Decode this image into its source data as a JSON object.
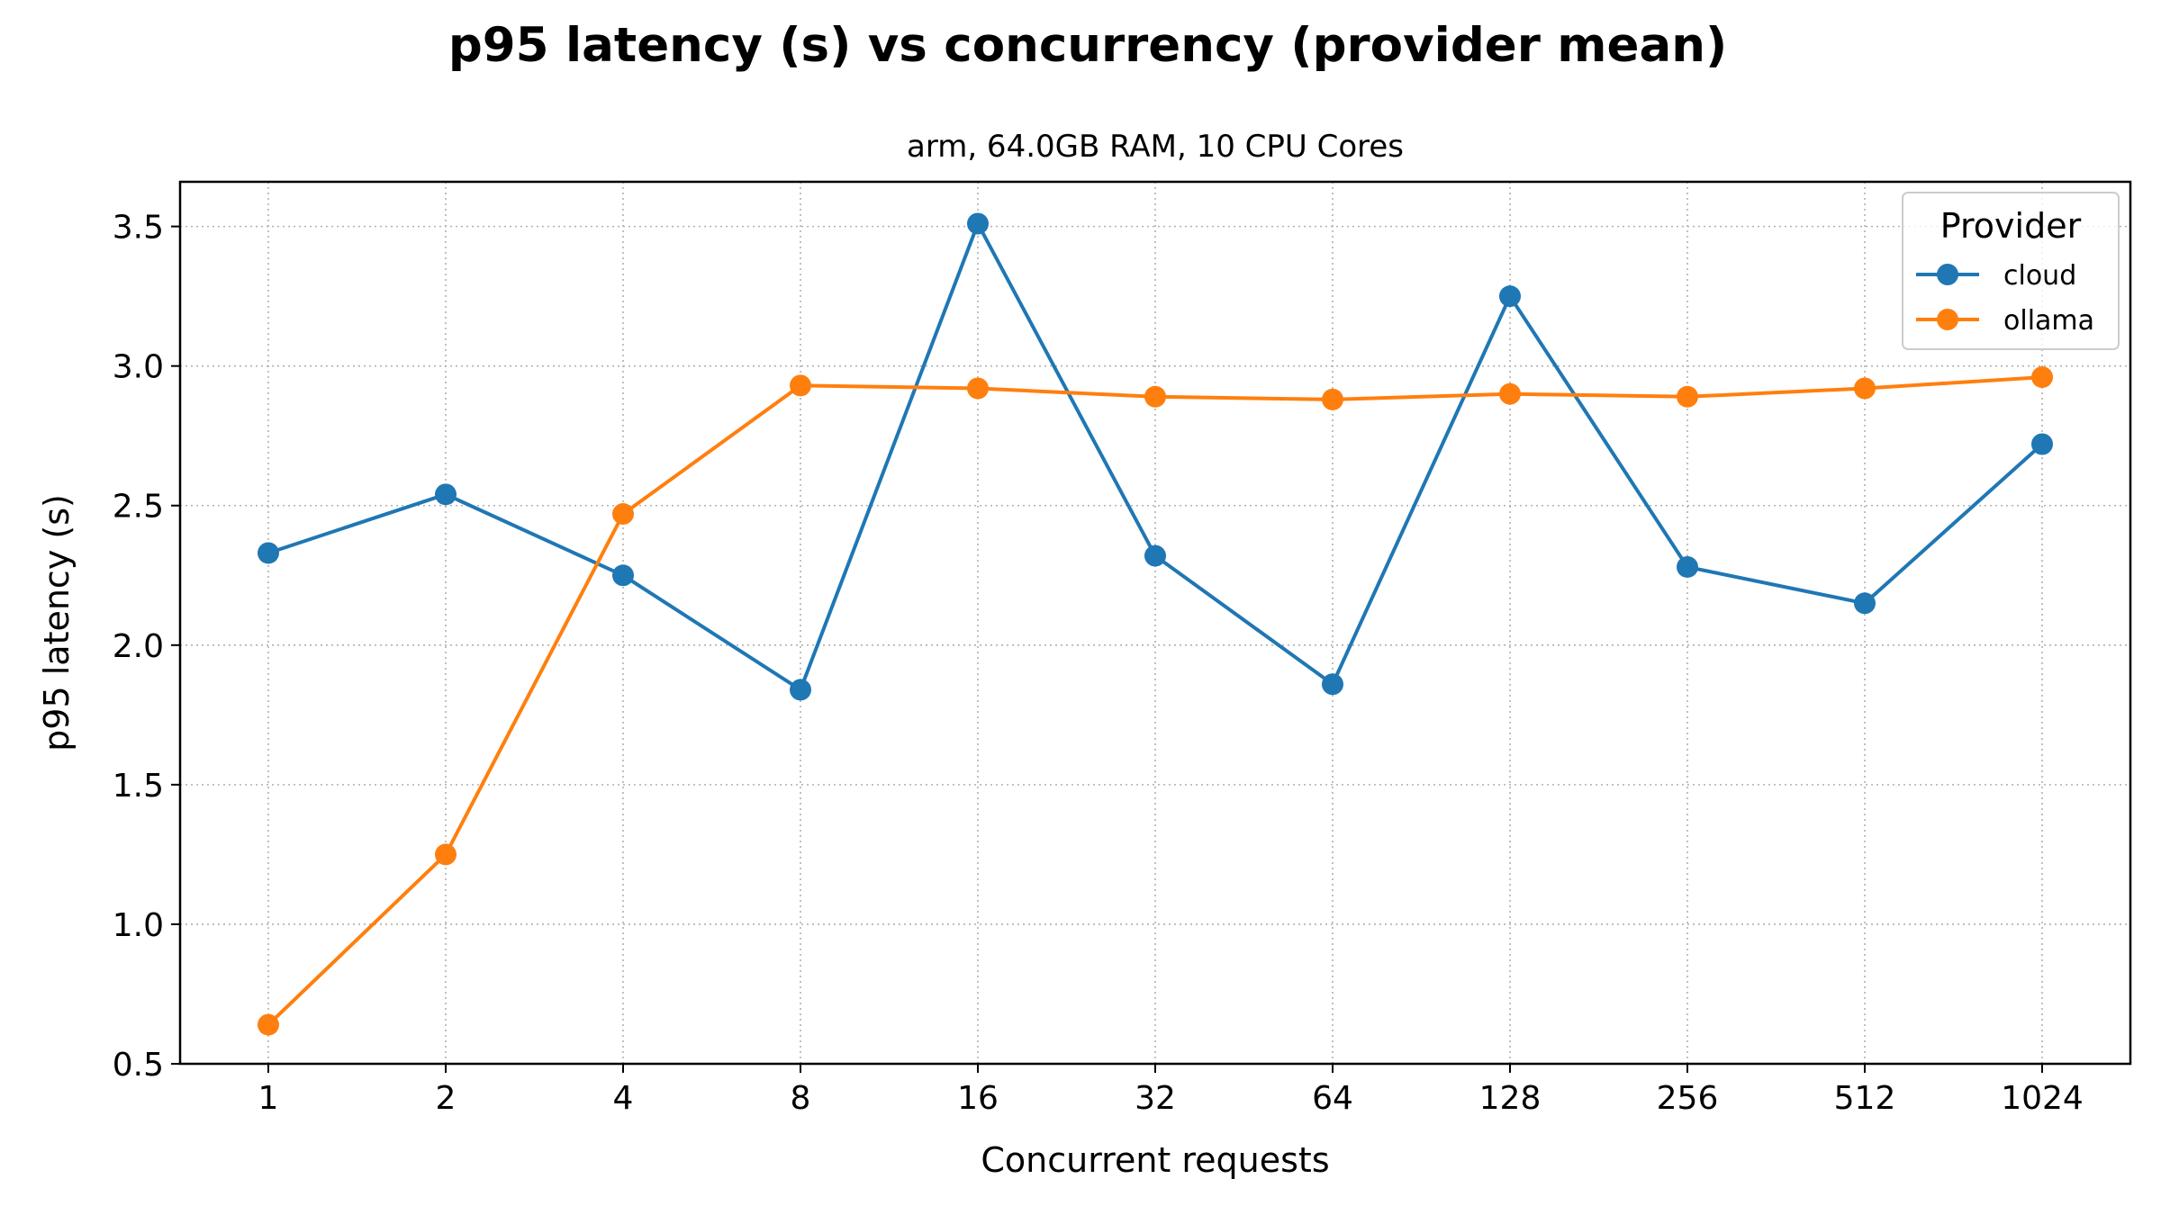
{
  "chart_data": {
    "type": "line",
    "title": "p95 latency (s) vs concurrency (provider mean)",
    "subtitle": "arm, 64.0GB RAM, 10 CPU Cores",
    "xlabel": "Concurrent requests",
    "ylabel": "p95 latency (s)",
    "categories": [
      "1",
      "2",
      "4",
      "8",
      "16",
      "32",
      "64",
      "128",
      "256",
      "512",
      "1024"
    ],
    "ylim": [
      0.5,
      3.66
    ],
    "yticks": [
      "0.5",
      "1.0",
      "1.5",
      "2.0",
      "2.5",
      "3.0",
      "3.5"
    ],
    "grid": true,
    "legend": {
      "title": "Provider",
      "placement": "top-right"
    },
    "series": [
      {
        "name": "cloud",
        "color": "#1f77b4",
        "values": [
          2.33,
          2.54,
          2.25,
          1.84,
          3.51,
          2.32,
          1.86,
          3.25,
          2.28,
          2.15,
          2.72
        ]
      },
      {
        "name": "ollama",
        "color": "#ff7f0e",
        "values": [
          0.64,
          1.25,
          2.47,
          2.93,
          2.92,
          2.89,
          2.88,
          2.9,
          2.89,
          2.92,
          2.96
        ]
      }
    ]
  }
}
